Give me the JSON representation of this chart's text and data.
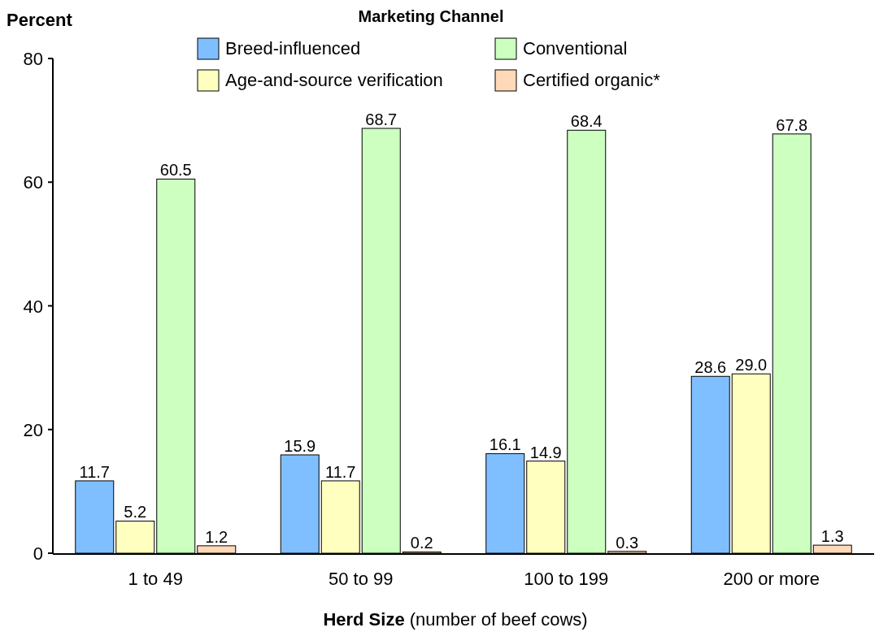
{
  "chart_data": {
    "type": "bar",
    "ylabel": "Percent",
    "xlabel": "Herd Size (number of beef cows)",
    "legend_title": "Marketing Channel",
    "legend": "top",
    "categories": [
      "1 to 49",
      "50 to 99",
      "100 to 199",
      "200 or more"
    ],
    "series": [
      {
        "name": "Breed-influenced",
        "color": "#80bfff",
        "values": [
          11.7,
          15.9,
          16.1,
          28.6
        ]
      },
      {
        "name": "Age-and-source verification",
        "color": "#ffffc0",
        "values": [
          5.2,
          11.7,
          14.9,
          29.0
        ]
      },
      {
        "name": "Conventional",
        "color": "#ccffc0",
        "values": [
          60.5,
          68.7,
          68.4,
          67.8
        ]
      },
      {
        "name": "Certified organic*",
        "color": "#ffd9b8",
        "values": [
          1.2,
          0.2,
          0.3,
          1.3
        ]
      }
    ],
    "value_labels": [
      [
        "11.7",
        "15.9",
        "16.1",
        "28.6"
      ],
      [
        "5.2",
        "11.7",
        "14.9",
        "29.0"
      ],
      [
        "60.5",
        "68.7",
        "68.4",
        "67.8"
      ],
      [
        "1.2",
        "0.2",
        "0.3",
        "1.3"
      ]
    ],
    "ylim": [
      0,
      80
    ],
    "yticks": [
      0,
      20,
      40,
      60,
      80
    ],
    "grid": false
  }
}
